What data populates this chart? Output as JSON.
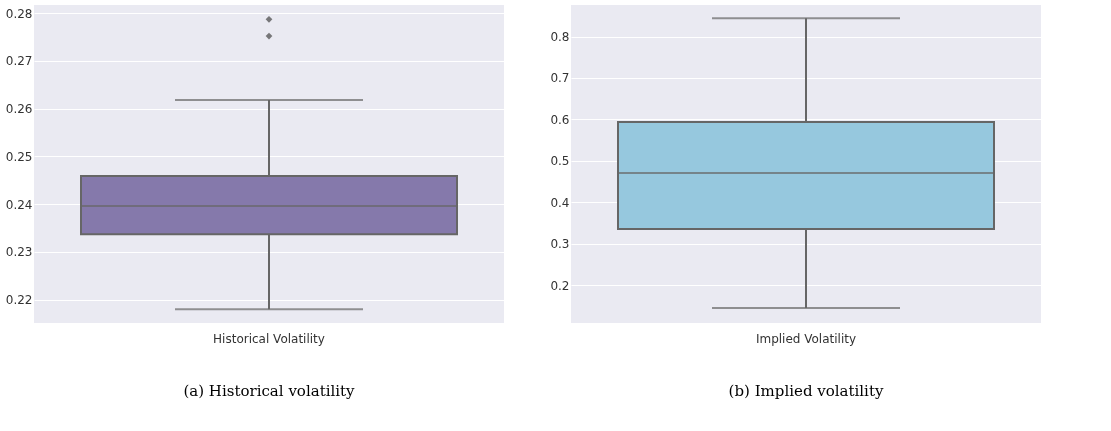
{
  "chart_data": [
    {
      "type": "box",
      "categories": [
        "Historical Volatility"
      ],
      "color": "#8579ab",
      "ylim": [
        0.2151,
        0.2817
      ],
      "yticks": [
        0.22,
        0.23,
        0.24,
        0.25,
        0.26,
        0.27,
        0.28
      ],
      "grid": "y",
      "marker": "diamond",
      "boxes": [
        {
          "low": 0.218,
          "q1": 0.2337,
          "median": 0.2396,
          "q3": 0.2459,
          "high": 0.2618,
          "outliers": [
            0.2752,
            0.2787
          ]
        }
      ],
      "annotations": [
        "(a) Historical volatility"
      ]
    },
    {
      "type": "box",
      "categories": [
        "Implied Volatility"
      ],
      "color": "#96c8de",
      "ylim": [
        0.109,
        0.876
      ],
      "yticks": [
        0.2,
        0.3,
        0.4,
        0.5,
        0.6,
        0.7,
        0.8
      ],
      "grid": "y",
      "boxes": [
        {
          "low": 0.145,
          "q1": 0.336,
          "median": 0.471,
          "q3": 0.594,
          "high": 0.844
        }
      ],
      "annotations": [
        "(b) Implied volatility"
      ]
    }
  ]
}
